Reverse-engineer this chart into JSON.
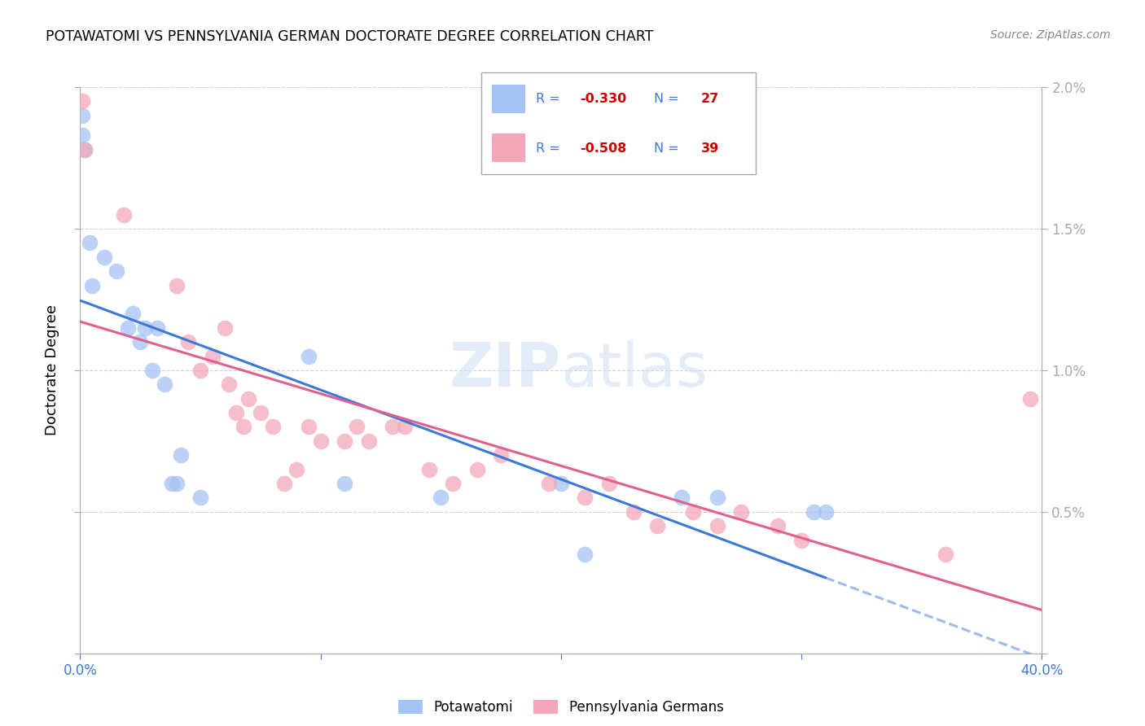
{
  "title": "POTAWATOMI VS PENNSYLVANIA GERMAN DOCTORATE DEGREE CORRELATION CHART",
  "source": "Source: ZipAtlas.com",
  "ylabel": "Doctorate Degree",
  "x_min": 0.0,
  "x_max": 0.4,
  "y_min": 0.0,
  "y_max": 0.02,
  "color_blue": "#a4c2f4",
  "color_pink": "#f4a7b9",
  "color_blue_line": "#3c78d8",
  "color_pink_line": "#e06090",
  "color_blue_text": "#3c78d8",
  "color_red_text": "#cc0000",
  "watermark_color": "#cfe2f3",
  "potawatomi_x": [
    0.001,
    0.001,
    0.002,
    0.004,
    0.005,
    0.01,
    0.015,
    0.02,
    0.022,
    0.025,
    0.027,
    0.03,
    0.032,
    0.035,
    0.038,
    0.04,
    0.042,
    0.05,
    0.095,
    0.11,
    0.15,
    0.2,
    0.21,
    0.25,
    0.265,
    0.305,
    0.31
  ],
  "potawatomi_y": [
    0.019,
    0.0183,
    0.0178,
    0.0145,
    0.013,
    0.014,
    0.0135,
    0.0115,
    0.012,
    0.011,
    0.0115,
    0.01,
    0.0115,
    0.0095,
    0.006,
    0.006,
    0.007,
    0.0055,
    0.0105,
    0.006,
    0.0055,
    0.006,
    0.0035,
    0.0055,
    0.0055,
    0.005,
    0.005
  ],
  "penn_german_x": [
    0.001,
    0.002,
    0.018,
    0.04,
    0.045,
    0.05,
    0.055,
    0.06,
    0.062,
    0.065,
    0.068,
    0.07,
    0.075,
    0.08,
    0.085,
    0.09,
    0.095,
    0.1,
    0.11,
    0.115,
    0.12,
    0.13,
    0.135,
    0.145,
    0.155,
    0.165,
    0.175,
    0.195,
    0.21,
    0.22,
    0.23,
    0.24,
    0.255,
    0.265,
    0.275,
    0.29,
    0.3,
    0.36,
    0.395
  ],
  "penn_german_y": [
    0.0195,
    0.0178,
    0.0155,
    0.013,
    0.011,
    0.01,
    0.0105,
    0.0115,
    0.0095,
    0.0085,
    0.008,
    0.009,
    0.0085,
    0.008,
    0.006,
    0.0065,
    0.008,
    0.0075,
    0.0075,
    0.008,
    0.0075,
    0.008,
    0.008,
    0.0065,
    0.006,
    0.0065,
    0.007,
    0.006,
    0.0055,
    0.006,
    0.005,
    0.0045,
    0.005,
    0.0045,
    0.005,
    0.0045,
    0.004,
    0.0035,
    0.009
  ],
  "legend_r1": "-0.330",
  "legend_n1": "27",
  "legend_r2": "-0.508",
  "legend_n2": "39"
}
